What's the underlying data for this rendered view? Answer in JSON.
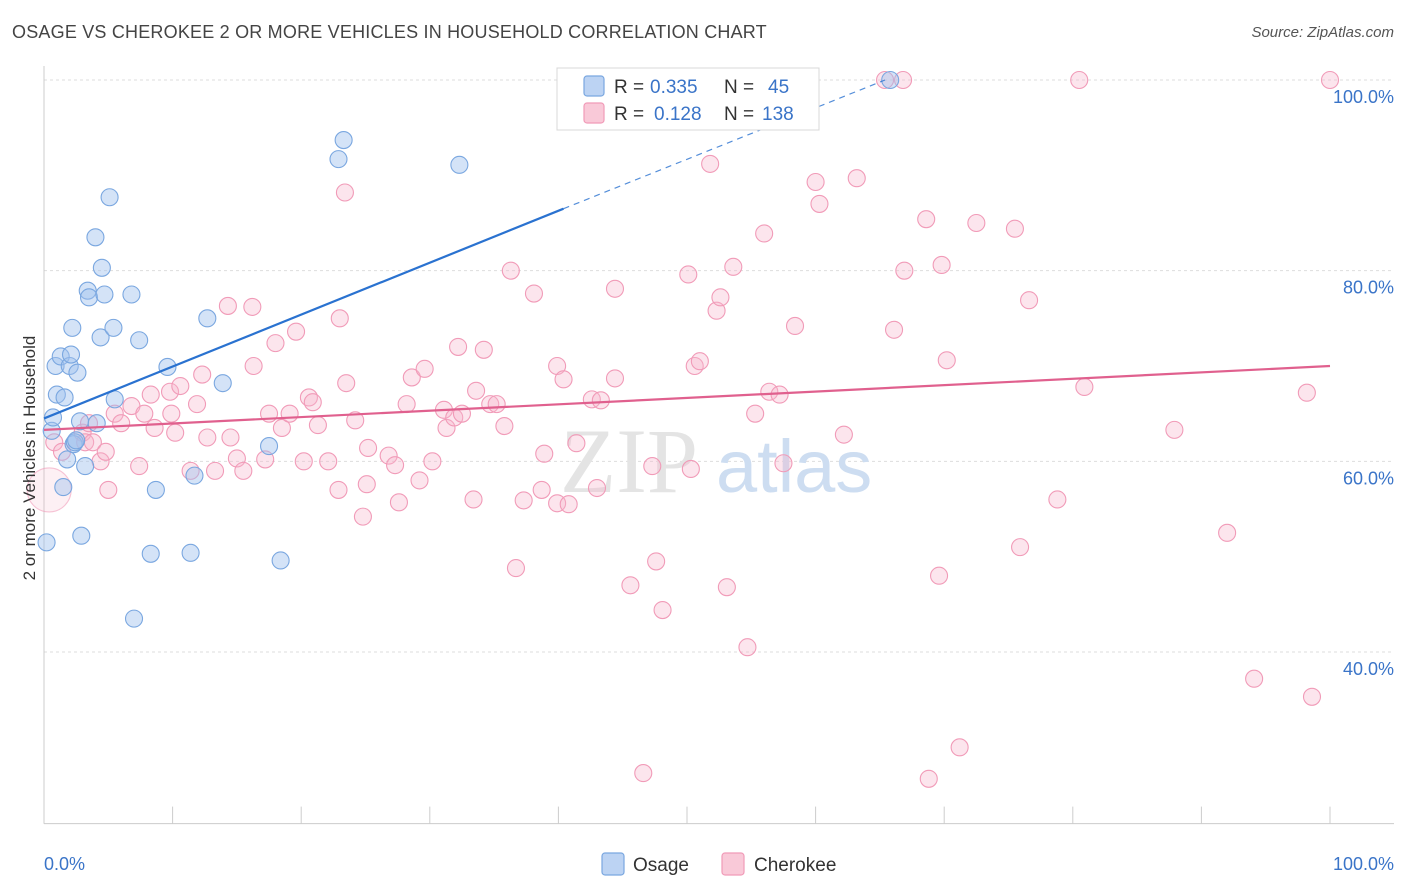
{
  "title": "OSAGE VS CHEROKEE 2 OR MORE VEHICLES IN HOUSEHOLD CORRELATION CHART",
  "source": "Source: ZipAtlas.com",
  "watermark": {
    "part1": "ZIP",
    "part2": "atlas"
  },
  "colors": {
    "osage": "#7aa7e0",
    "osage_line": "#2a72d0",
    "cherokee": "#f19bb8",
    "cherokee_line": "#e0608e",
    "axis_label": "#3a74c8",
    "grid": "#dddddd"
  },
  "legend": {
    "rows": [
      {
        "series": "Osage",
        "r_label": "R =",
        "r_value": "0.335",
        "n_label": "N =",
        "n_value": "45"
      },
      {
        "series": "Cherokee",
        "r_label": "R =",
        "r_value": "0.128",
        "n_label": "N =",
        "n_value": "138"
      }
    ]
  },
  "chart_data": {
    "type": "scatter",
    "title": "OSAGE VS CHEROKEE 2 OR MORE VEHICLES IN HOUSEHOLD CORRELATION CHART",
    "xlabel": "",
    "ylabel": "2 or more Vehicles in Household",
    "xlim": [
      0,
      100
    ],
    "ylim": [
      22,
      101
    ],
    "x_tick_labels": {
      "left": "0.0%",
      "right": "100.0%"
    },
    "y_ticks": [
      {
        "value": 100,
        "label": "100.0%"
      },
      {
        "value": 80,
        "label": "80.0%"
      },
      {
        "value": 60,
        "label": "60.0%"
      },
      {
        "value": 40,
        "label": "40.0%"
      }
    ],
    "bottom_legend": [
      "Osage",
      "Cherokee"
    ],
    "series": [
      {
        "name": "Osage",
        "color": "#7aa7e0",
        "r": 0.335,
        "n": 45,
        "trend": {
          "x0": 0,
          "y0": 64.5,
          "x1": 40.4,
          "y1": 86.5,
          "dash_x1": 65.4,
          "dash_y1": 100
        },
        "points": [
          [
            0.2,
            51.5
          ],
          [
            0.6,
            63.2
          ],
          [
            0.7,
            64.6
          ],
          [
            0.9,
            70
          ],
          [
            1,
            67
          ],
          [
            1.3,
            71
          ],
          [
            1.5,
            57.3
          ],
          [
            1.6,
            66.7
          ],
          [
            1.8,
            60.2
          ],
          [
            2,
            70
          ],
          [
            2.1,
            71.2
          ],
          [
            2.2,
            74
          ],
          [
            2.3,
            61.8
          ],
          [
            2.4,
            62
          ],
          [
            2.5,
            62.2
          ],
          [
            2.6,
            69.3
          ],
          [
            2.8,
            64.2
          ],
          [
            2.9,
            52.2
          ],
          [
            3.2,
            59.5
          ],
          [
            3.4,
            77.9
          ],
          [
            3.5,
            77.2
          ],
          [
            4,
            83.5
          ],
          [
            4.1,
            64
          ],
          [
            4.4,
            73
          ],
          [
            4.5,
            80.3
          ],
          [
            4.7,
            77.5
          ],
          [
            5.1,
            87.7
          ],
          [
            5.4,
            74
          ],
          [
            5.5,
            66.5
          ],
          [
            6.8,
            77.5
          ],
          [
            7,
            43.5
          ],
          [
            7.4,
            72.7
          ],
          [
            8.3,
            50.3
          ],
          [
            8.7,
            57
          ],
          [
            9.6,
            69.9
          ],
          [
            11.4,
            50.4
          ],
          [
            11.7,
            58.5
          ],
          [
            12.7,
            75
          ],
          [
            13.9,
            68.2
          ],
          [
            17.5,
            61.6
          ],
          [
            18.4,
            49.6
          ],
          [
            22.9,
            91.7
          ],
          [
            23.3,
            93.7
          ],
          [
            32.3,
            91.1
          ],
          [
            65.8,
            100
          ]
        ]
      },
      {
        "name": "Cherokee",
        "color": "#f19bb8",
        "r": 0.128,
        "n": 138,
        "trend": {
          "x0": 0,
          "y0": 63.3,
          "x1": 100,
          "y1": 70
        },
        "points": [
          [
            0.4,
            57
          ],
          [
            0.8,
            62
          ],
          [
            1.4,
            61
          ],
          [
            3,
            63
          ],
          [
            3.2,
            62
          ],
          [
            3.5,
            64
          ],
          [
            3.8,
            62
          ],
          [
            4.4,
            60
          ],
          [
            4.8,
            61
          ],
          [
            5,
            57
          ],
          [
            5.5,
            65
          ],
          [
            6,
            64
          ],
          [
            6.8,
            65.8
          ],
          [
            7.4,
            59.5
          ],
          [
            7.8,
            65
          ],
          [
            8.3,
            67
          ],
          [
            8.6,
            63.5
          ],
          [
            9.8,
            67.3
          ],
          [
            9.9,
            65
          ],
          [
            10.2,
            63
          ],
          [
            10.6,
            67.9
          ],
          [
            11.4,
            59
          ],
          [
            11.9,
            66
          ],
          [
            12.3,
            69.1
          ],
          [
            12.7,
            62.5
          ],
          [
            13.3,
            59
          ],
          [
            14.3,
            76.3
          ],
          [
            14.5,
            62.5
          ],
          [
            15,
            60.3
          ],
          [
            15.5,
            59
          ],
          [
            16.2,
            76.2
          ],
          [
            16.3,
            70
          ],
          [
            17.2,
            60.2
          ],
          [
            17.5,
            65
          ],
          [
            18,
            72.4
          ],
          [
            18.5,
            63.5
          ],
          [
            19.1,
            65
          ],
          [
            19.6,
            73.6
          ],
          [
            20.2,
            60
          ],
          [
            20.6,
            66.7
          ],
          [
            20.9,
            66.2
          ],
          [
            21.3,
            63.8
          ],
          [
            22.1,
            60
          ],
          [
            22.9,
            57
          ],
          [
            23,
            75
          ],
          [
            23.4,
            88.2
          ],
          [
            23.5,
            68.2
          ],
          [
            24.2,
            64.3
          ],
          [
            24.8,
            54.2
          ],
          [
            25.1,
            57.6
          ],
          [
            25.2,
            61.4
          ],
          [
            26.8,
            60.6
          ],
          [
            27.3,
            59.6
          ],
          [
            27.6,
            55.7
          ],
          [
            28.2,
            66
          ],
          [
            28.6,
            68.8
          ],
          [
            29.2,
            58
          ],
          [
            29.6,
            69.7
          ],
          [
            30.2,
            60
          ],
          [
            31.1,
            65.4
          ],
          [
            31.3,
            63.5
          ],
          [
            31.9,
            64.6
          ],
          [
            32.2,
            72
          ],
          [
            32.5,
            65
          ],
          [
            33.4,
            56
          ],
          [
            33.6,
            67.4
          ],
          [
            34.2,
            71.7
          ],
          [
            34.7,
            66
          ],
          [
            35.2,
            66
          ],
          [
            35.8,
            63.7
          ],
          [
            36.3,
            80
          ],
          [
            36.7,
            48.8
          ],
          [
            37.3,
            55.9
          ],
          [
            38.1,
            77.6
          ],
          [
            38.7,
            57
          ],
          [
            38.9,
            60.8
          ],
          [
            39.9,
            55.6
          ],
          [
            39.9,
            70
          ],
          [
            40.4,
            68.6
          ],
          [
            40.8,
            55.5
          ],
          [
            41.4,
            61.9
          ],
          [
            42.6,
            66.5
          ],
          [
            43,
            57.2
          ],
          [
            43.3,
            66.4
          ],
          [
            44.4,
            78.1
          ],
          [
            44.4,
            68.7
          ],
          [
            45.6,
            47
          ],
          [
            46.6,
            27.3
          ],
          [
            47.3,
            59.5
          ],
          [
            47.6,
            49.5
          ],
          [
            48.1,
            44.4
          ],
          [
            50.1,
            79.6
          ],
          [
            50.3,
            59.2
          ],
          [
            50.6,
            70
          ],
          [
            51,
            70.5
          ],
          [
            51.8,
            91.2
          ],
          [
            52.3,
            75.8
          ],
          [
            52.6,
            77.2
          ],
          [
            53.1,
            46.8
          ],
          [
            53.6,
            80.4
          ],
          [
            54.7,
            40.5
          ],
          [
            55.3,
            65
          ],
          [
            56,
            83.9
          ],
          [
            56.4,
            67.3
          ],
          [
            57.2,
            67
          ],
          [
            57.5,
            59.8
          ],
          [
            58.4,
            74.2
          ],
          [
            60,
            89.3
          ],
          [
            60.3,
            87
          ],
          [
            62.2,
            62.8
          ],
          [
            63.2,
            89.7
          ],
          [
            65.4,
            100
          ],
          [
            66.1,
            73.8
          ],
          [
            66.8,
            100
          ],
          [
            66.9,
            80
          ],
          [
            68.6,
            85.4
          ],
          [
            68.8,
            26.7
          ],
          [
            69.6,
            48
          ],
          [
            69.8,
            80.6
          ],
          [
            70.2,
            70.6
          ],
          [
            71.2,
            30
          ],
          [
            72.5,
            85
          ],
          [
            75.5,
            84.4
          ],
          [
            75.9,
            51
          ],
          [
            76.6,
            76.9
          ],
          [
            78.8,
            56
          ],
          [
            80.5,
            100
          ],
          [
            80.9,
            67.8
          ],
          [
            87.9,
            63.3
          ],
          [
            92,
            52.5
          ],
          [
            94.1,
            37.2
          ],
          [
            98.2,
            67.2
          ],
          [
            98.6,
            35.3
          ],
          [
            100,
            100
          ]
        ]
      }
    ]
  }
}
